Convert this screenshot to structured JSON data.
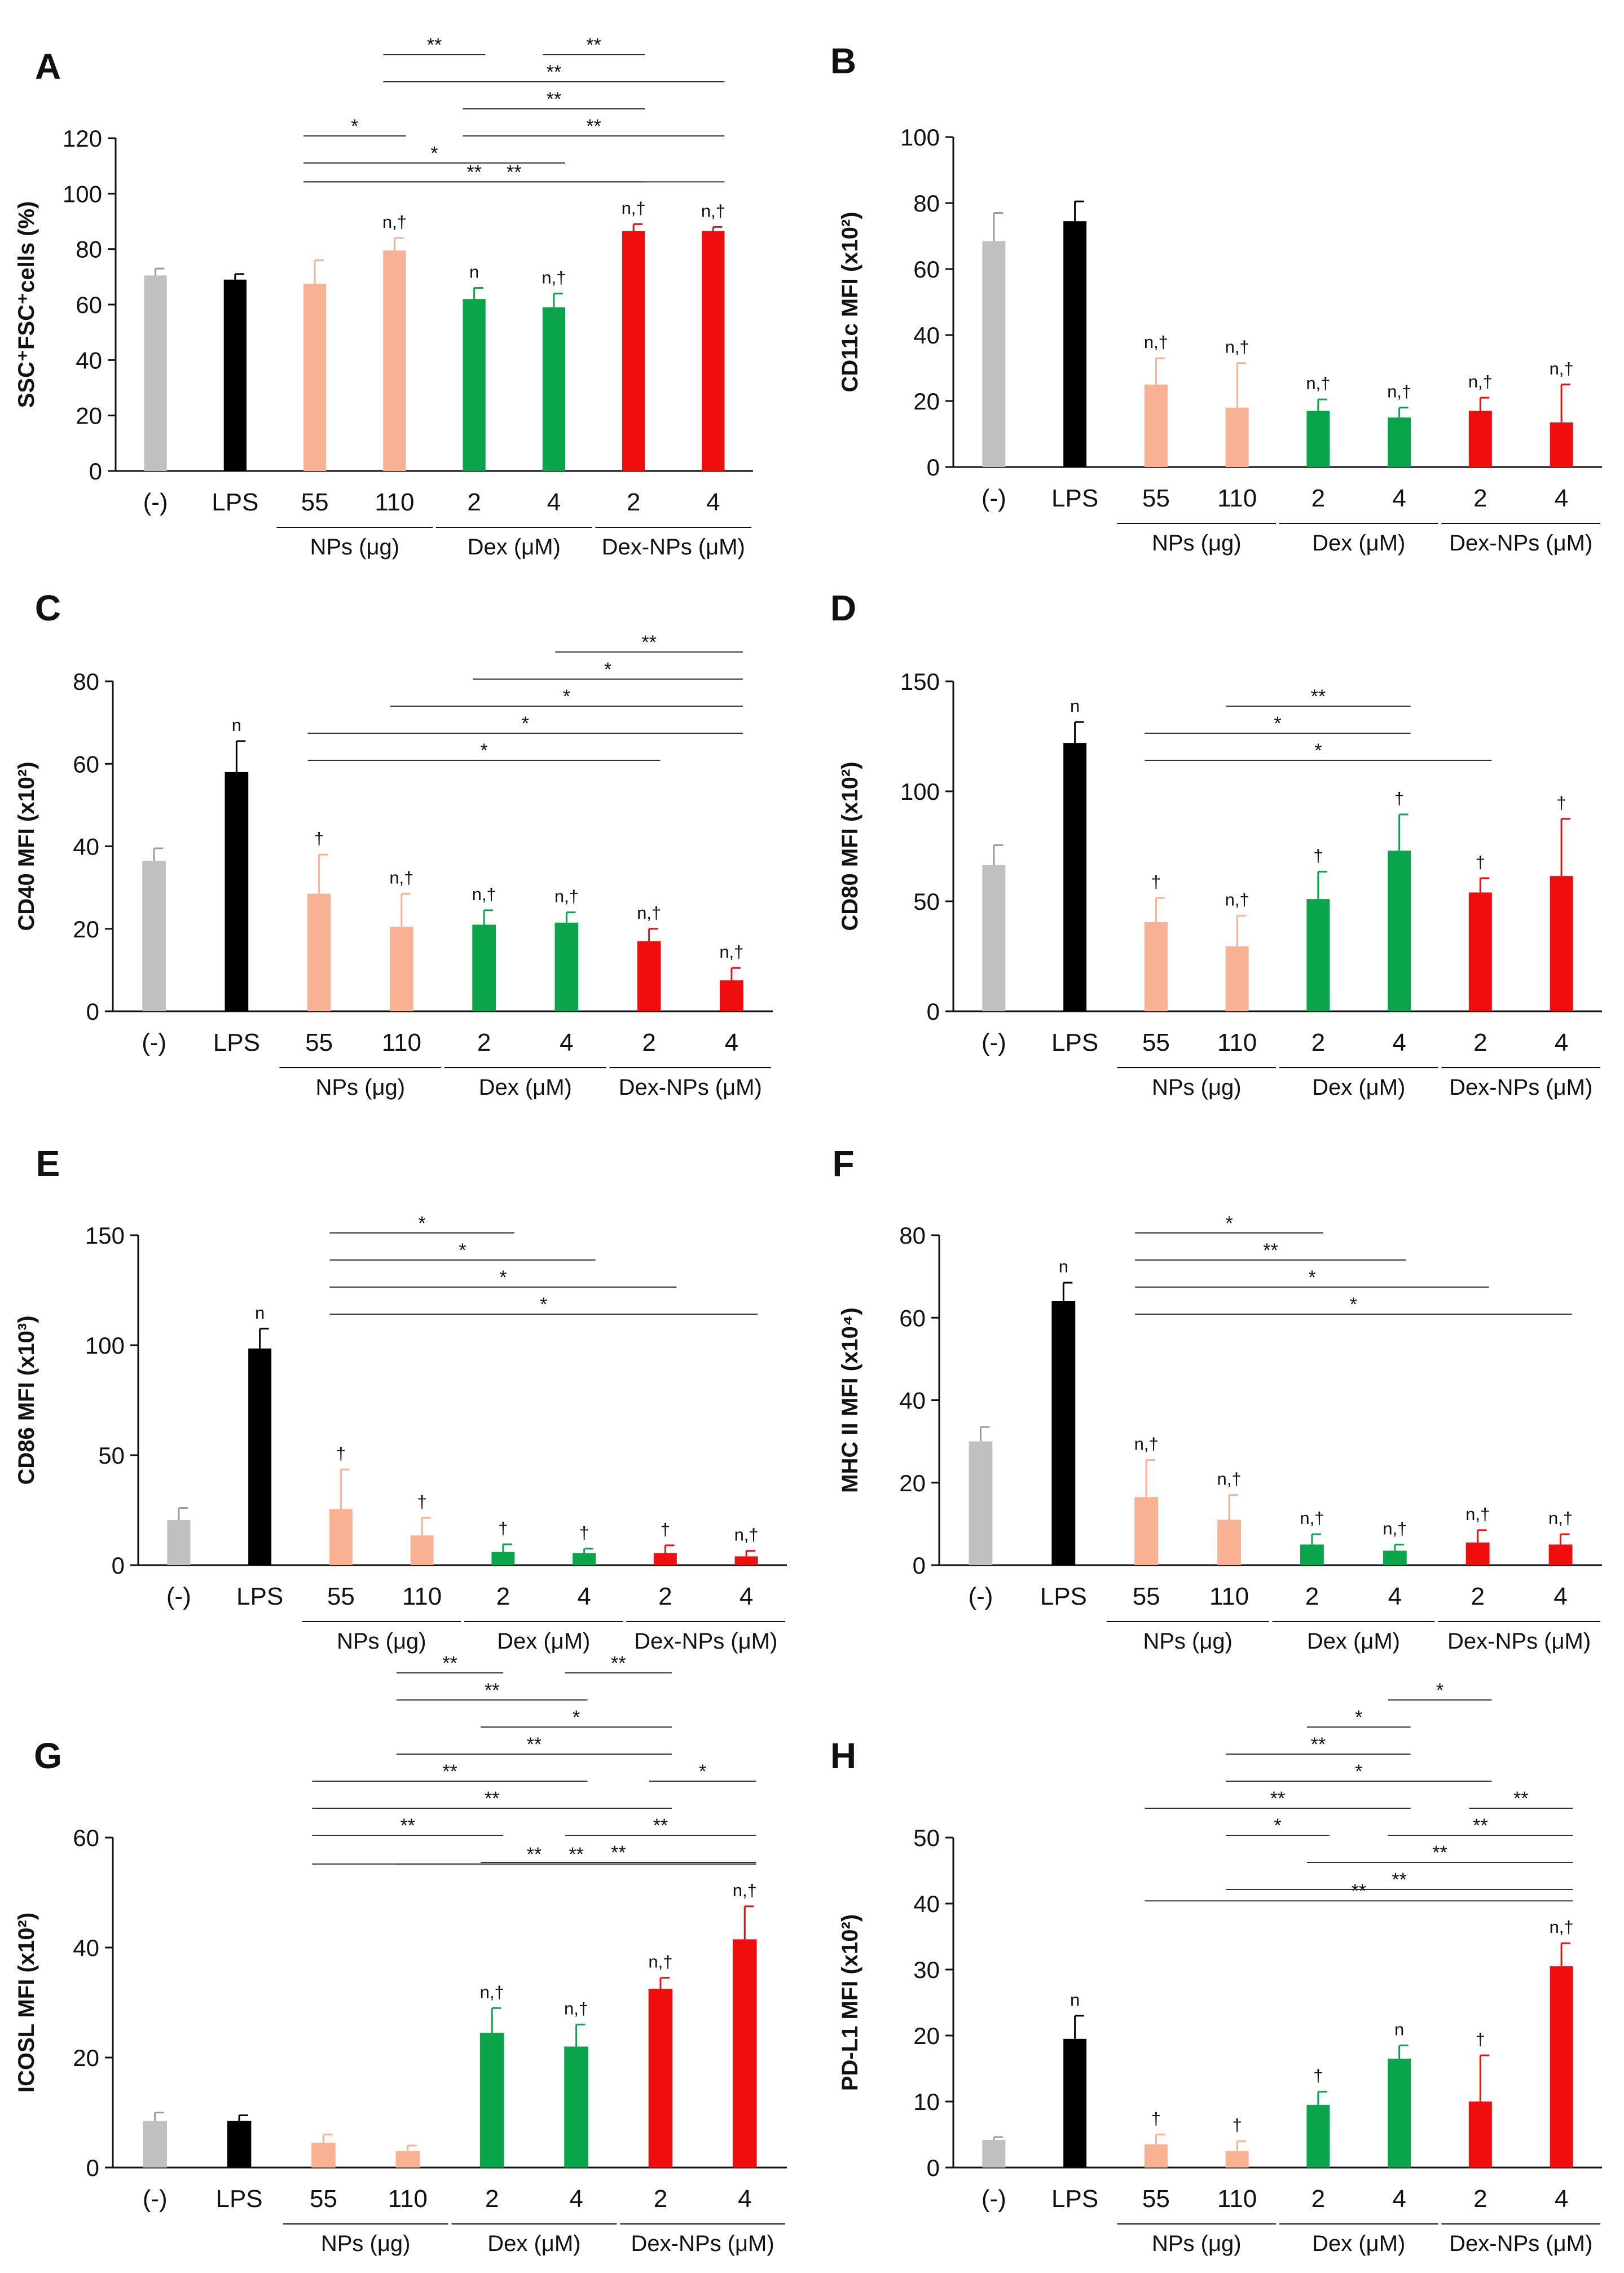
{
  "colors": {
    "(-)": "#c0c0c0",
    "LPS": "#000000",
    "NPs": "#f8b193",
    "Dex": "#0aa44b",
    "Dex-NPs": "#f00d0d",
    "axis": "#111111",
    "bracket": "#333333"
  },
  "chart_data": [
    {
      "panel": "A",
      "type": "bar",
      "ylabel": "SSC⁺FSC⁺cells (%)",
      "ylim": [
        0,
        120
      ],
      "yticks": [
        "0",
        "20",
        "40",
        "60",
        "80",
        "100",
        "120"
      ],
      "categories": [
        "(-)",
        "LPS",
        "55",
        "110",
        "2",
        "4",
        "2",
        "4"
      ],
      "groups": [
        {
          "label": "NPs (μg)",
          "start": 2,
          "end": 3
        },
        {
          "label": "Dex (μM)",
          "start": 4,
          "end": 5
        },
        {
          "label": "Dex-NPs (μM)",
          "start": 6,
          "end": 7
        }
      ],
      "values": [
        70.5,
        69,
        67.5,
        79.5,
        62,
        59,
        86.5,
        86.5
      ],
      "errors": [
        2.5,
        2,
        8.5,
        4.5,
        4,
        5,
        2.5,
        1.5
      ],
      "labels": [
        "",
        "",
        "",
        "n,†",
        "n",
        "n,†",
        "n,†",
        "n,†"
      ],
      "brackets": [
        {
          "from": 2,
          "to": 7,
          "label": "**"
        },
        {
          "from": 2,
          "to": 6,
          "label": "**"
        },
        {
          "from": 2,
          "to": 5,
          "label": "*"
        },
        {
          "from": 4,
          "to": 7,
          "label": "**"
        },
        {
          "from": 4,
          "to": 6,
          "label": "**"
        },
        {
          "from": 3,
          "to": 7,
          "label": "**"
        },
        {
          "from": 2,
          "to": 3,
          "label": "*"
        },
        {
          "from": 3,
          "to": 4,
          "label": "**"
        },
        {
          "from": 5,
          "to": 6,
          "label": "**"
        }
      ]
    },
    {
      "panel": "B",
      "type": "bar",
      "ylabel": "CD11c MFI (x10²)",
      "ylim": [
        0,
        100
      ],
      "yticks": [
        "0",
        "20",
        "40",
        "60",
        "80",
        "100"
      ],
      "categories": [
        "(-)",
        "LPS",
        "55",
        "110",
        "2",
        "4",
        "2",
        "4"
      ],
      "groups": [
        {
          "label": "NPs (μg)",
          "start": 2,
          "end": 3
        },
        {
          "label": "Dex (μM)",
          "start": 4,
          "end": 5
        },
        {
          "label": "Dex-NPs (μM)",
          "start": 6,
          "end": 7
        }
      ],
      "values": [
        68.5,
        74.5,
        25,
        18,
        17,
        15,
        17,
        13.5
      ],
      "errors": [
        8.5,
        6,
        8,
        13.5,
        3.5,
        3,
        4,
        11.5
      ],
      "labels": [
        "",
        "",
        "n,†",
        "n,†",
        "n,†",
        "n,†",
        "n,†",
        "n,†"
      ],
      "brackets": []
    },
    {
      "panel": "C",
      "type": "bar",
      "ylabel": "CD40 MFI (x10²)",
      "ylim": [
        0,
        80
      ],
      "yticks": [
        "0",
        "20",
        "40",
        "60",
        "80"
      ],
      "categories": [
        "(-)",
        "LPS",
        "55",
        "110",
        "2",
        "4",
        "2",
        "4"
      ],
      "groups": [
        {
          "label": "NPs (μg)",
          "start": 2,
          "end": 3
        },
        {
          "label": "Dex (μM)",
          "start": 4,
          "end": 5
        },
        {
          "label": "Dex-NPs (μM)",
          "start": 6,
          "end": 7
        }
      ],
      "values": [
        36.5,
        58,
        28.5,
        20.5,
        21,
        21.5,
        17,
        7.5
      ],
      "errors": [
        3,
        7.5,
        9.5,
        8,
        3.5,
        2.5,
        3,
        3
      ],
      "labels": [
        "",
        "n",
        "†",
        "n,†",
        "n,†",
        "n,†",
        "n,†",
        "n,†"
      ],
      "brackets": [
        {
          "from": 2,
          "to": 6,
          "label": "*"
        },
        {
          "from": 2,
          "to": 7,
          "label": "*"
        },
        {
          "from": 3,
          "to": 7,
          "label": "*"
        },
        {
          "from": 4,
          "to": 7,
          "label": "*"
        },
        {
          "from": 5,
          "to": 7,
          "label": "**"
        }
      ]
    },
    {
      "panel": "D",
      "type": "bar",
      "ylabel": "CD80 MFI (x10²)",
      "ylim": [
        0,
        150
      ],
      "yticks": [
        "0",
        "50",
        "100",
        "150"
      ],
      "categories": [
        "(-)",
        "LPS",
        "55",
        "110",
        "2",
        "4",
        "2",
        "4"
      ],
      "groups": [
        {
          "label": "NPs (μg)",
          "start": 2,
          "end": 3
        },
        {
          "label": "Dex (μM)",
          "start": 4,
          "end": 5
        },
        {
          "label": "Dex-NPs (μM)",
          "start": 6,
          "end": 7
        }
      ],
      "values": [
        66.5,
        122,
        40.5,
        29.5,
        51,
        73,
        54,
        61.5
      ],
      "errors": [
        9,
        9.5,
        11,
        14,
        12.5,
        16.5,
        6.5,
        26
      ],
      "labels": [
        "",
        "n",
        "†",
        "n,†",
        "†",
        "†",
        "†",
        "†"
      ],
      "brackets": [
        {
          "from": 2,
          "to": 6,
          "label": "*"
        },
        {
          "from": 2,
          "to": 5,
          "label": "*"
        },
        {
          "from": 3,
          "to": 5,
          "label": "**"
        }
      ]
    },
    {
      "panel": "E",
      "type": "bar",
      "ylabel": "CD86 MFI (x10³)",
      "ylim": [
        0,
        150
      ],
      "yticks": [
        "0",
        "50",
        "100",
        "150"
      ],
      "categories": [
        "(-)",
        "LPS",
        "55",
        "110",
        "2",
        "4",
        "2",
        "4"
      ],
      "groups": [
        {
          "label": "NPs (μg)",
          "start": 2,
          "end": 3
        },
        {
          "label": "Dex (μM)",
          "start": 4,
          "end": 5
        },
        {
          "label": "Dex-NPs (μM)",
          "start": 6,
          "end": 7
        }
      ],
      "values": [
        20.5,
        98.5,
        25.5,
        13.5,
        6,
        5.5,
        5.5,
        4
      ],
      "errors": [
        5.5,
        9,
        18,
        8,
        3.5,
        2,
        3.5,
        2.5
      ],
      "labels": [
        "",
        "n",
        "†",
        "†",
        "†",
        "†",
        "†",
        "n,†"
      ],
      "brackets": [
        {
          "from": 2,
          "to": 7,
          "label": "*"
        },
        {
          "from": 2,
          "to": 6,
          "label": "*"
        },
        {
          "from": 2,
          "to": 5,
          "label": "*"
        },
        {
          "from": 2,
          "to": 4,
          "label": "*"
        }
      ]
    },
    {
      "panel": "F",
      "type": "bar",
      "ylabel": "MHC II MFI (x10⁴)",
      "ylim": [
        0,
        80
      ],
      "yticks": [
        "0",
        "20",
        "40",
        "60",
        "80"
      ],
      "categories": [
        "(-)",
        "LPS",
        "55",
        "110",
        "2",
        "4",
        "2",
        "4"
      ],
      "groups": [
        {
          "label": "NPs (μg)",
          "start": 2,
          "end": 3
        },
        {
          "label": "Dex (μM)",
          "start": 4,
          "end": 5
        },
        {
          "label": "Dex-NPs (μM)",
          "start": 6,
          "end": 7
        }
      ],
      "values": [
        30,
        64,
        16.5,
        11,
        5,
        3.5,
        5.5,
        5
      ],
      "errors": [
        3.5,
        4.5,
        9,
        6,
        2.5,
        1.5,
        3,
        2.5
      ],
      "labels": [
        "",
        "n",
        "n,†",
        "n,†",
        "n,†",
        "n,†",
        "n,†",
        "n,†"
      ],
      "brackets": [
        {
          "from": 2,
          "to": 7,
          "label": "*"
        },
        {
          "from": 2,
          "to": 6,
          "label": "*"
        },
        {
          "from": 2,
          "to": 5,
          "label": "**"
        },
        {
          "from": 2,
          "to": 4,
          "label": "*"
        }
      ]
    },
    {
      "panel": "G",
      "type": "bar",
      "ylabel": "ICOSL MFI (x10²)",
      "ylim": [
        0,
        60
      ],
      "yticks": [
        "0",
        "20",
        "40",
        "60"
      ],
      "categories": [
        "(-)",
        "LPS",
        "55",
        "110",
        "2",
        "4",
        "2",
        "4"
      ],
      "groups": [
        {
          "label": "NPs (μg)",
          "start": 2,
          "end": 3
        },
        {
          "label": "Dex (μM)",
          "start": 4,
          "end": 5
        },
        {
          "label": "Dex-NPs (μM)",
          "start": 6,
          "end": 7
        }
      ],
      "values": [
        8.5,
        8.5,
        4.5,
        3,
        24.5,
        22,
        32.5,
        41.5
      ],
      "errors": [
        1.5,
        1,
        1.5,
        1,
        4.5,
        4,
        2,
        6
      ],
      "labels": [
        "",
        "",
        "",
        "",
        "n,†",
        "n,†",
        "n,†",
        "n,†"
      ],
      "brackets": [
        {
          "from": 2,
          "to": 7,
          "label": "**"
        },
        {
          "from": 3,
          "to": 7,
          "label": "**"
        },
        {
          "from": 4,
          "to": 7,
          "label": "**"
        },
        {
          "from": 5,
          "to": 7,
          "label": "**"
        },
        {
          "from": 2,
          "to": 6,
          "label": "**"
        },
        {
          "from": 6,
          "to": 7,
          "label": "*"
        },
        {
          "from": 2,
          "to": 5,
          "label": "**"
        },
        {
          "from": 3,
          "to": 6,
          "label": "**"
        },
        {
          "from": 2,
          "to": 4,
          "label": "**"
        },
        {
          "from": 4,
          "to": 6,
          "label": "*"
        },
        {
          "from": 3,
          "to": 5,
          "label": "**"
        },
        {
          "from": 5,
          "to": 6,
          "label": "**"
        },
        {
          "from": 3,
          "to": 4,
          "label": "**"
        }
      ]
    },
    {
      "panel": "H",
      "type": "bar",
      "ylabel": "PD-L1 MFI (x10²)",
      "ylim": [
        0,
        50
      ],
      "yticks": [
        "0",
        "10",
        "20",
        "30",
        "40",
        "50"
      ],
      "categories": [
        "(-)",
        "LPS",
        "55",
        "110",
        "2",
        "4",
        "2",
        "4"
      ],
      "groups": [
        {
          "label": "NPs (μg)",
          "start": 2,
          "end": 3
        },
        {
          "label": "Dex (μM)",
          "start": 4,
          "end": 5
        },
        {
          "label": "Dex-NPs (μM)",
          "start": 6,
          "end": 7
        }
      ],
      "values": [
        4.2,
        19.5,
        3.5,
        2.5,
        9.5,
        16.5,
        10,
        30.5
      ],
      "errors": [
        0.4,
        3.5,
        1.5,
        1.5,
        2,
        2,
        7,
        3.5
      ],
      "labels": [
        "",
        "n",
        "†",
        "†",
        "†",
        "n",
        "†",
        "n,†"
      ],
      "brackets": [
        {
          "from": 2,
          "to": 7,
          "label": "**"
        },
        {
          "from": 3,
          "to": 7,
          "label": "**"
        },
        {
          "from": 4,
          "to": 7,
          "label": "**"
        },
        {
          "from": 5,
          "to": 7,
          "label": "**"
        },
        {
          "from": 6,
          "to": 7,
          "label": "**"
        },
        {
          "from": 2,
          "to": 5,
          "label": "**"
        },
        {
          "from": 3,
          "to": 6,
          "label": "*"
        },
        {
          "from": 3,
          "to": 5,
          "label": "**"
        },
        {
          "from": 4,
          "to": 5,
          "label": "*"
        },
        {
          "from": 5,
          "to": 6,
          "label": "*"
        },
        {
          "from": 3,
          "to": 4,
          "label": "*"
        }
      ]
    }
  ]
}
